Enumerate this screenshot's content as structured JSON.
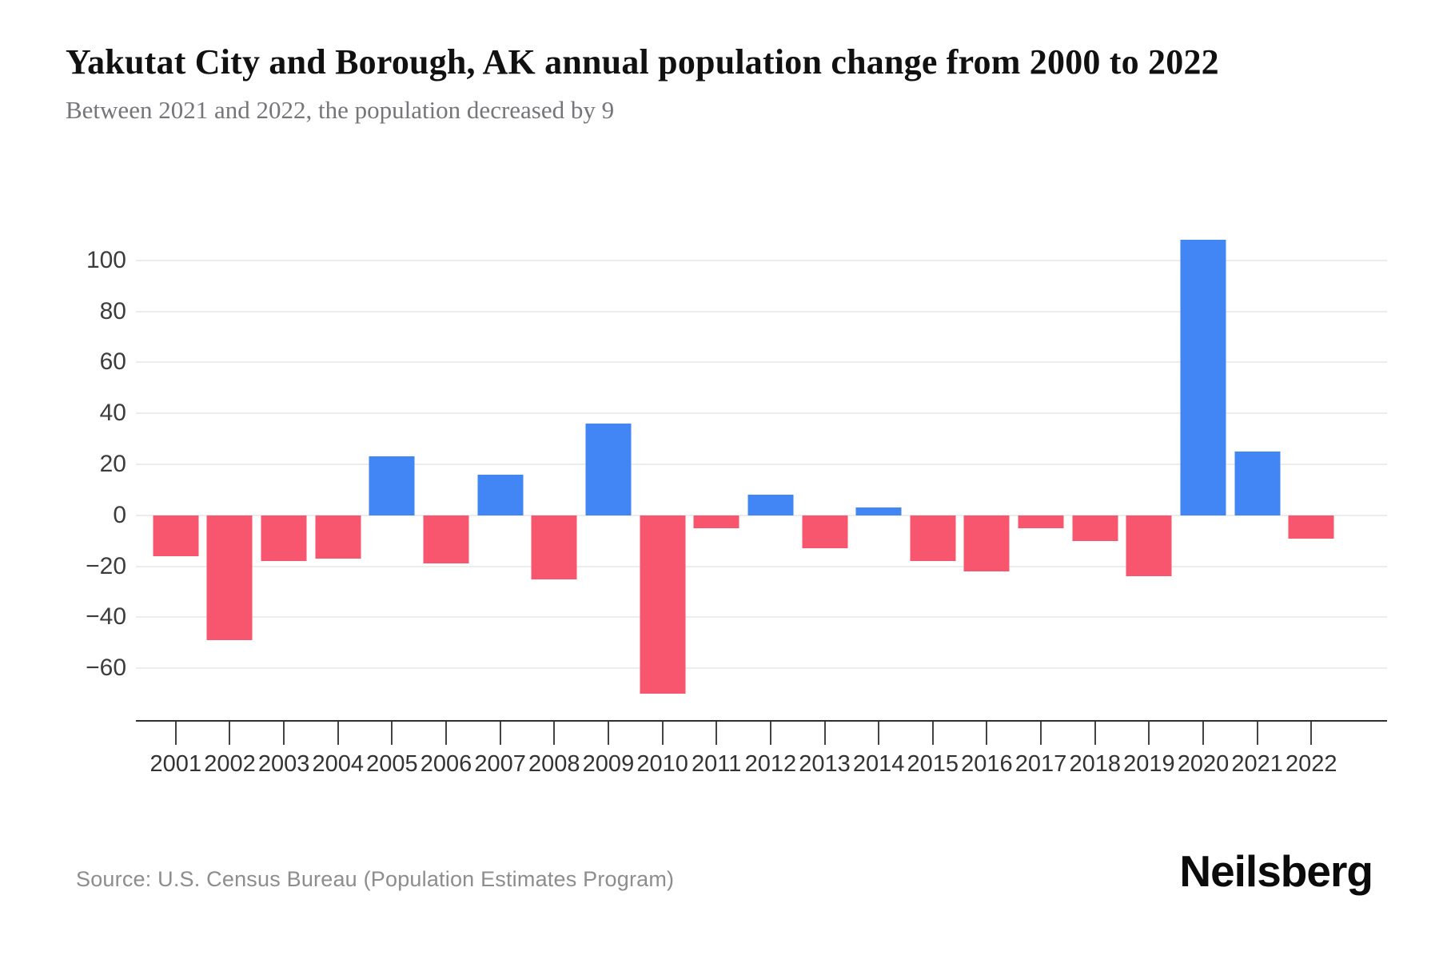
{
  "header": {
    "title": "Yakutat City and Borough, AK annual population change from 2000 to 2022",
    "subtitle": "Between 2021 and 2022, the population decreased by 9"
  },
  "footer": {
    "source": "Source: U.S. Census Bureau (Population Estimates Program)",
    "brand": "Neilsberg"
  },
  "colors": {
    "positive_bar": "#4285F4",
    "negative_bar": "#F8556E",
    "gridline": "#EDEDED",
    "axis_line": "#2F2F2F",
    "tick_label": "#333333",
    "y_label": "#3C3C3C"
  },
  "chart_data": {
    "type": "bar",
    "title": "Yakutat City and Borough, AK annual population change from 2000 to 2022",
    "subtitle": "Between 2021 and 2022, the population decreased by 9",
    "xlabel": "",
    "ylabel": "",
    "categories": [
      "2001",
      "2002",
      "2003",
      "2004",
      "2005",
      "2006",
      "2007",
      "2008",
      "2009",
      "2010",
      "2011",
      "2012",
      "2013",
      "2014",
      "2015",
      "2016",
      "2017",
      "2018",
      "2019",
      "2020",
      "2021",
      "2022"
    ],
    "values": [
      -16,
      -49,
      -18,
      -17,
      23,
      -19,
      16,
      -25,
      36,
      -70,
      -5,
      8,
      -13,
      3,
      -18,
      -22,
      -5,
      -10,
      -24,
      108,
      25,
      -9
    ],
    "ylim": [
      -80,
      120
    ],
    "y_ticks": [
      100,
      80,
      60,
      40,
      20,
      0,
      -20,
      -40,
      -60
    ],
    "grid": "horizontal-only",
    "legend": "none",
    "color_rule": "positive values blue, negative values rose-red"
  }
}
